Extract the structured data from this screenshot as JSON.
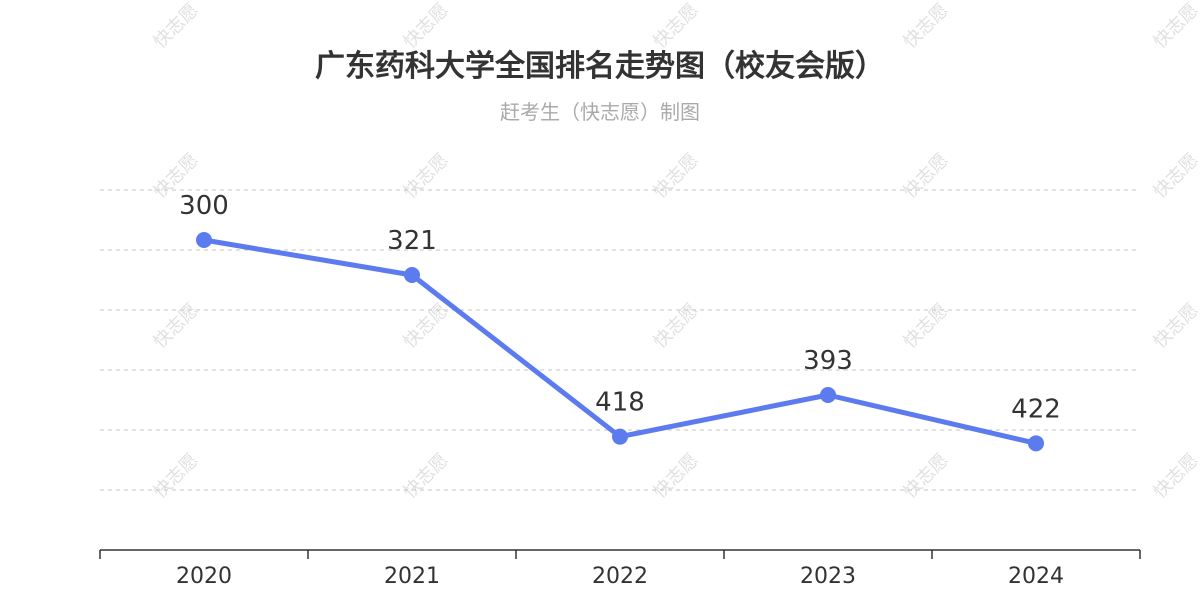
{
  "chart_data": {
    "type": "line",
    "title": "广东药科大学全国排名走势图（校友会版）",
    "subtitle": "赶考生（快志愿）制图",
    "xlabel": "",
    "ylabel": "",
    "categories": [
      "2020",
      "2021",
      "2022",
      "2023",
      "2024"
    ],
    "series": [
      {
        "values": [
          300,
          321,
          418,
          393,
          422
        ]
      }
    ],
    "y_axis_inverted": true,
    "ylim": [
      270,
      450
    ],
    "grid": "horizontal-dashed",
    "data_labels": true,
    "line_color": "#5b7bef"
  },
  "watermark": "快志愿"
}
